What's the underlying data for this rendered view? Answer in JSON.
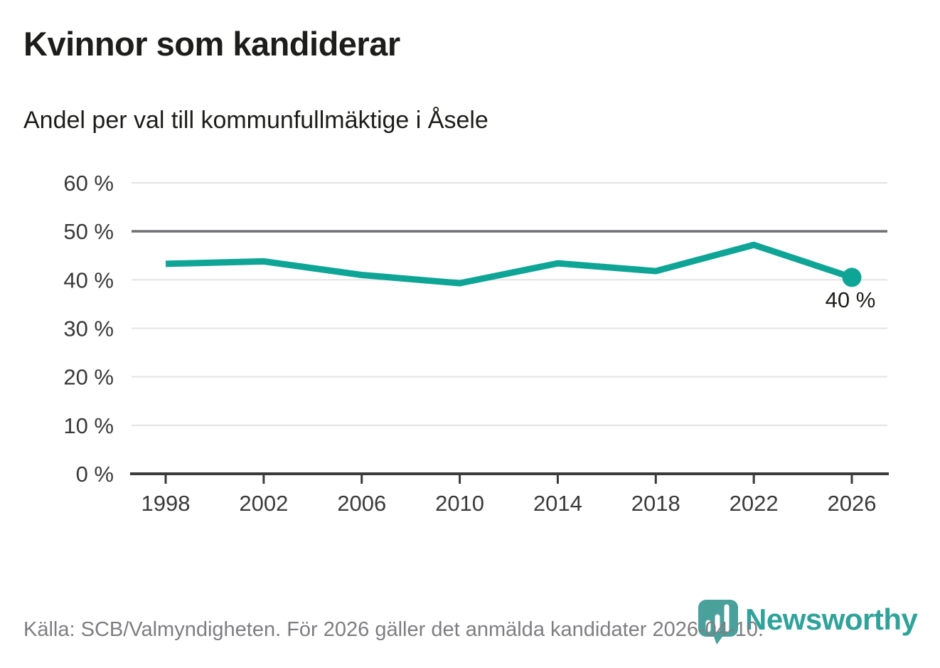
{
  "header": {
    "title": "Kvinnor som kandiderar",
    "subtitle": "Andel per val till kommunfullmäktige i Åsele"
  },
  "chart_data": {
    "type": "line",
    "title": "Kvinnor som kandiderar",
    "subtitle": "Andel per val till kommunfullmäktige i Åsele",
    "x": [
      1998,
      2002,
      2006,
      2010,
      2014,
      2018,
      2022,
      2026
    ],
    "values": [
      43.3,
      43.8,
      41.0,
      39.3,
      43.4,
      41.8,
      47.2,
      40.5
    ],
    "ylim": [
      0,
      60
    ],
    "y_ticks": [
      0,
      10,
      20,
      30,
      40,
      50,
      60
    ],
    "y_tick_labels": [
      "0 %",
      "10 %",
      "20 %",
      "30 %",
      "40 %",
      "50 %",
      "60 %"
    ],
    "x_tick_labels": [
      "1998",
      "2002",
      "2006",
      "2010",
      "2014",
      "2018",
      "2022",
      "2026"
    ],
    "emphasized_gridline": 50,
    "end_point_label": "40 %",
    "grid": true,
    "legend": "none"
  },
  "footer": {
    "text": "Källa: SCB/Valmyndigheten. För 2026 gäller det anmälda kandidater 2026-04-10."
  },
  "logo": {
    "text": "Newsworthy"
  },
  "colors": {
    "line": "#0ea597",
    "grid": "#e3e3e3",
    "grid_emphasis": "#6e6e73",
    "axis": "#3a3a3a",
    "tick_text": "#3a3a3a",
    "title_text": "#1d1d1b",
    "end_label_text": "#1d1d1b",
    "footer_text": "#7e7e82",
    "logo": "#4aa09b",
    "wordmark": "#2fa29a"
  }
}
